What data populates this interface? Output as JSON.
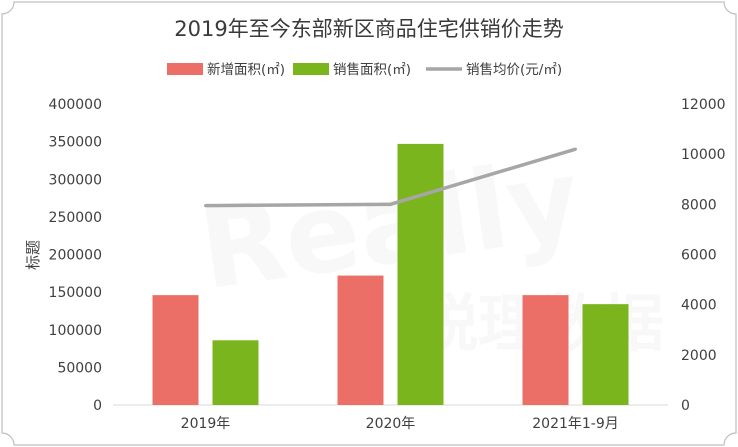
{
  "chart_data": {
    "type": "bar",
    "title": "2019年至今东部新区商品住宅供销价走势",
    "categories": [
      "2019年",
      "2020年",
      "2021年1-9月"
    ],
    "series": [
      {
        "name": "新增面积(㎡)",
        "kind": "bar",
        "axis": "left",
        "color": "#ec6f67",
        "values": [
          146000,
          172000,
          146000
        ]
      },
      {
        "name": "销售面积(㎡)",
        "kind": "bar",
        "axis": "left",
        "color": "#7ab51d",
        "values": [
          86000,
          347000,
          134000
        ]
      },
      {
        "name": "销售均价(元/㎡)",
        "kind": "line",
        "axis": "right",
        "color": "#a6a6a6",
        "values": [
          7950,
          8000,
          10200
        ]
      }
    ],
    "ylabel": "标题",
    "ylim": [
      0,
      400000
    ],
    "y2lim": [
      0,
      12000
    ],
    "yticks": [
      "0",
      "50000",
      "100000",
      "150000",
      "200000",
      "250000",
      "300000",
      "350000",
      "400000"
    ],
    "y2ticks": [
      "0",
      "2000",
      "4000",
      "6000",
      "8000",
      "10000",
      "12000"
    ],
    "grid": false,
    "legend_position": "top",
    "watermark": "Really 锐理数据"
  }
}
